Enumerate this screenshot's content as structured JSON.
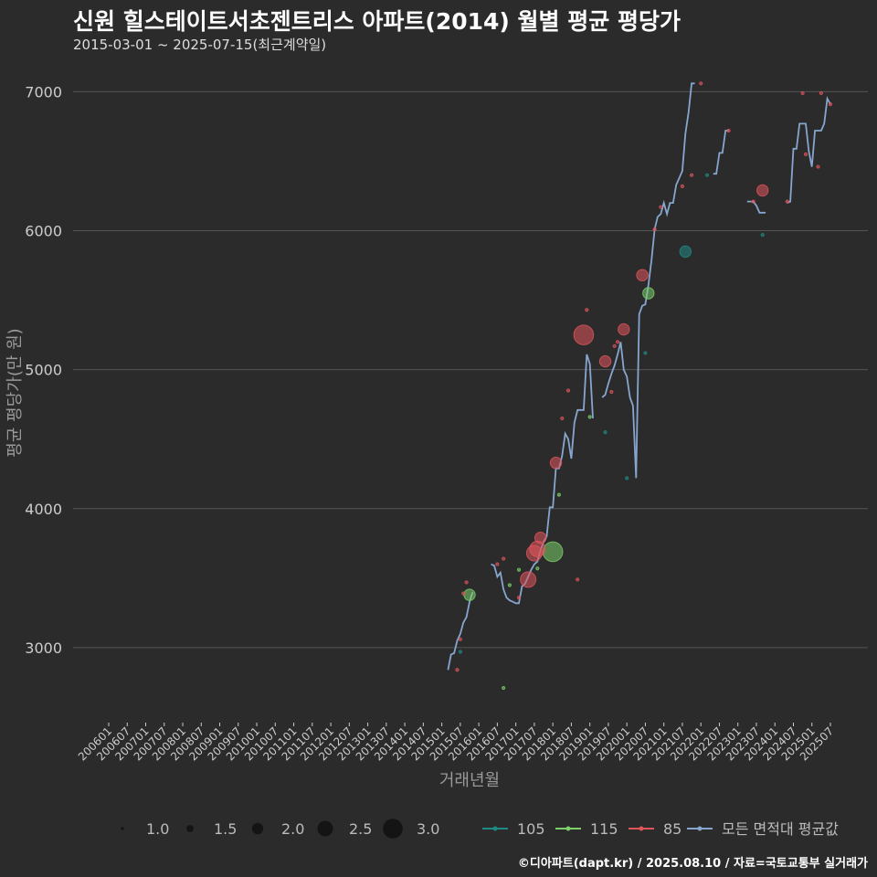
{
  "title": "신원 힐스테이트서초젠트리스 아파트(2014) 월별 평균 평당가",
  "subtitle": "2015-03-01 ~ 2025-07-15(최근계약일)",
  "caption": "©디아파트(dapt.kr) / 2025.08.10 / 자료=국토교통부 실거래가",
  "colors": {
    "background": "#2b2b2b",
    "grid": "#555555",
    "s105": "#1f8a83",
    "s115": "#7ccf6b",
    "s85": "#e0555c",
    "avg": "#86a6cf",
    "size_legend": "#141414"
  },
  "chart_data": {
    "type": "scatter",
    "xlabel": "거래년월",
    "ylabel": "평균 평당가(만 원)",
    "ylim": [
      2500,
      7200
    ],
    "yticks": [
      3000,
      4000,
      5000,
      6000,
      7000
    ],
    "x_range": [
      "2006-01",
      "2025-08"
    ],
    "xticks": [
      "200601",
      "200607",
      "200701",
      "200707",
      "200801",
      "200807",
      "200901",
      "200907",
      "201001",
      "201007",
      "201101",
      "201107",
      "201201",
      "201207",
      "201301",
      "201307",
      "201401",
      "201407",
      "201501",
      "201507",
      "201601",
      "201607",
      "201701",
      "201707",
      "201801",
      "201807",
      "201901",
      "201907",
      "202001",
      "202007",
      "202101",
      "202107",
      "202201",
      "202207",
      "202301",
      "202307",
      "202401",
      "202407",
      "202501",
      "202507"
    ],
    "size_legend": {
      "title": "",
      "values": [
        1.0,
        1.5,
        2.0,
        2.5,
        3.0
      ],
      "labels": [
        "1.0",
        "1.5",
        "2.0",
        "2.5",
        "3.0"
      ]
    },
    "color_legend": [
      {
        "key": "s105",
        "label": "105"
      },
      {
        "key": "s115",
        "label": "115"
      },
      {
        "key": "s85",
        "label": "85"
      },
      {
        "key": "avg",
        "label": "모든 면적대 평균값"
      }
    ],
    "series": [
      {
        "key": "s105",
        "points": [
          {
            "x": "2015-07",
            "y": 2970,
            "n": 1
          },
          {
            "x": "2019-06",
            "y": 4550,
            "n": 1
          },
          {
            "x": "2020-01",
            "y": 4220,
            "n": 1
          },
          {
            "x": "2020-07",
            "y": 5120,
            "n": 1
          },
          {
            "x": "2021-08",
            "y": 5850,
            "n": 2
          },
          {
            "x": "2022-03",
            "y": 6400,
            "n": 1
          },
          {
            "x": "2023-09",
            "y": 5970,
            "n": 1
          }
        ]
      },
      {
        "key": "s115",
        "points": [
          {
            "x": "2015-10",
            "y": 3380,
            "n": 2
          },
          {
            "x": "2016-09",
            "y": 2710,
            "n": 1
          },
          {
            "x": "2016-11",
            "y": 3450,
            "n": 1
          },
          {
            "x": "2017-02",
            "y": 3560,
            "n": 1
          },
          {
            "x": "2017-08",
            "y": 3570,
            "n": 1
          },
          {
            "x": "2018-01",
            "y": 3690,
            "n": 3
          },
          {
            "x": "2018-03",
            "y": 4100,
            "n": 1
          },
          {
            "x": "2019-01",
            "y": 4660,
            "n": 1
          },
          {
            "x": "2020-08",
            "y": 5550,
            "n": 2
          }
        ]
      },
      {
        "key": "s85",
        "points": [
          {
            "x": "2015-06",
            "y": 2840,
            "n": 1
          },
          {
            "x": "2015-07",
            "y": 3060,
            "n": 1
          },
          {
            "x": "2015-08",
            "y": 3390,
            "n": 1
          },
          {
            "x": "2015-09",
            "y": 3470,
            "n": 1
          },
          {
            "x": "2016-07",
            "y": 3600,
            "n": 1
          },
          {
            "x": "2016-09",
            "y": 3640,
            "n": 1
          },
          {
            "x": "2017-02",
            "y": 3360,
            "n": 1
          },
          {
            "x": "2017-05",
            "y": 3490,
            "n": 2.5
          },
          {
            "x": "2017-07",
            "y": 3680,
            "n": 2.5
          },
          {
            "x": "2017-09",
            "y": 3790,
            "n": 2
          },
          {
            "x": "2017-08",
            "y": 3710,
            "n": 2.5
          },
          {
            "x": "2018-02",
            "y": 4330,
            "n": 2
          },
          {
            "x": "2018-04",
            "y": 4650,
            "n": 1
          },
          {
            "x": "2018-06",
            "y": 4850,
            "n": 1
          },
          {
            "x": "2018-09",
            "y": 3490,
            "n": 1
          },
          {
            "x": "2018-11",
            "y": 5250,
            "n": 3
          },
          {
            "x": "2018-12",
            "y": 5430,
            "n": 1
          },
          {
            "x": "2019-06",
            "y": 5060,
            "n": 2
          },
          {
            "x": "2019-08",
            "y": 4840,
            "n": 1
          },
          {
            "x": "2019-09",
            "y": 5170,
            "n": 1
          },
          {
            "x": "2019-10",
            "y": 5200,
            "n": 1
          },
          {
            "x": "2019-12",
            "y": 5290,
            "n": 2
          },
          {
            "x": "2020-06",
            "y": 5680,
            "n": 2
          },
          {
            "x": "2020-10",
            "y": 6010,
            "n": 1
          },
          {
            "x": "2020-12",
            "y": 6170,
            "n": 1
          },
          {
            "x": "2021-07",
            "y": 6320,
            "n": 1
          },
          {
            "x": "2021-10",
            "y": 6400,
            "n": 1
          },
          {
            "x": "2022-01",
            "y": 7060,
            "n": 1
          },
          {
            "x": "2022-10",
            "y": 6720,
            "n": 1
          },
          {
            "x": "2023-06",
            "y": 6210,
            "n": 1
          },
          {
            "x": "2023-09",
            "y": 6290,
            "n": 2
          },
          {
            "x": "2024-05",
            "y": 6210,
            "n": 1
          },
          {
            "x": "2024-10",
            "y": 6990,
            "n": 1
          },
          {
            "x": "2024-11",
            "y": 6550,
            "n": 1
          },
          {
            "x": "2025-03",
            "y": 6460,
            "n": 1
          },
          {
            "x": "2025-04",
            "y": 6990,
            "n": 1
          },
          {
            "x": "2025-07",
            "y": 6910,
            "n": 1
          }
        ]
      }
    ],
    "average_line": {
      "key": "avg",
      "segments": [
        [
          [
            "2015-03",
            2840
          ],
          [
            "2015-04",
            2950
          ],
          [
            "2015-05",
            2960
          ],
          [
            "2015-06",
            3050
          ],
          [
            "2015-07",
            3100
          ],
          [
            "2015-08",
            3180
          ],
          [
            "2015-09",
            3220
          ],
          [
            "2015-10",
            3330
          ],
          [
            "2015-11",
            3400
          ]
        ],
        [
          [
            "2016-05",
            3600
          ],
          [
            "2016-06",
            3590
          ],
          [
            "2016-07",
            3510
          ],
          [
            "2016-08",
            3540
          ],
          [
            "2016-09",
            3420
          ],
          [
            "2016-10",
            3360
          ],
          [
            "2016-11",
            3340
          ],
          [
            "2016-12",
            3330
          ],
          [
            "2017-01",
            3320
          ],
          [
            "2017-02",
            3320
          ],
          [
            "2017-03",
            3440
          ],
          [
            "2017-04",
            3460
          ],
          [
            "2017-05",
            3510
          ],
          [
            "2017-06",
            3560
          ],
          [
            "2017-07",
            3600
          ],
          [
            "2017-08",
            3620
          ],
          [
            "2017-09",
            3700
          ],
          [
            "2017-10",
            3760
          ],
          [
            "2017-11",
            3800
          ],
          [
            "2017-12",
            4010
          ],
          [
            "2018-01",
            4010
          ],
          [
            "2018-02",
            4290
          ],
          [
            "2018-03",
            4290
          ],
          [
            "2018-04",
            4380
          ],
          [
            "2018-05",
            4540
          ],
          [
            "2018-06",
            4500
          ],
          [
            "2018-07",
            4360
          ],
          [
            "2018-08",
            4620
          ],
          [
            "2018-09",
            4710
          ],
          [
            "2018-10",
            4710
          ],
          [
            "2018-11",
            4710
          ],
          [
            "2018-12",
            5110
          ],
          [
            "2019-01",
            5040
          ],
          [
            "2019-02",
            4650
          ]
        ],
        [
          [
            "2019-05",
            4800
          ],
          [
            "2019-06",
            4820
          ],
          [
            "2019-07",
            4900
          ],
          [
            "2019-08",
            4970
          ],
          [
            "2019-09",
            5030
          ],
          [
            "2019-10",
            5110
          ],
          [
            "2019-11",
            5200
          ],
          [
            "2019-12",
            5000
          ],
          [
            "2020-01",
            4950
          ],
          [
            "2020-02",
            4800
          ],
          [
            "2020-03",
            4740
          ],
          [
            "2020-04",
            4220
          ],
          [
            "2020-05",
            5400
          ],
          [
            "2020-06",
            5460
          ],
          [
            "2020-07",
            5470
          ],
          [
            "2020-08",
            5610
          ],
          [
            "2020-09",
            5790
          ],
          [
            "2020-10",
            6010
          ],
          [
            "2020-11",
            6100
          ],
          [
            "2020-12",
            6120
          ],
          [
            "2021-01",
            6200
          ],
          [
            "2021-02",
            6120
          ],
          [
            "2021-03",
            6200
          ],
          [
            "2021-04",
            6200
          ],
          [
            "2021-05",
            6330
          ],
          [
            "2021-06",
            6380
          ],
          [
            "2021-07",
            6430
          ],
          [
            "2021-08",
            6700
          ],
          [
            "2021-09",
            6850
          ],
          [
            "2021-10",
            7060
          ],
          [
            "2021-11",
            7060
          ]
        ],
        [
          [
            "2022-05",
            6410
          ],
          [
            "2022-06",
            6410
          ],
          [
            "2022-07",
            6560
          ],
          [
            "2022-08",
            6560
          ],
          [
            "2022-09",
            6720
          ],
          [
            "2022-10",
            6720
          ]
        ],
        [
          [
            "2023-04",
            6210
          ],
          [
            "2023-05",
            6210
          ],
          [
            "2023-06",
            6210
          ],
          [
            "2023-07",
            6180
          ],
          [
            "2023-08",
            6130
          ],
          [
            "2023-09",
            6130
          ],
          [
            "2023-10",
            6130
          ]
        ],
        [
          [
            "2024-05",
            6200
          ],
          [
            "2024-06",
            6210
          ],
          [
            "2024-07",
            6590
          ],
          [
            "2024-08",
            6590
          ],
          [
            "2024-09",
            6770
          ],
          [
            "2024-10",
            6770
          ],
          [
            "2024-11",
            6770
          ],
          [
            "2024-12",
            6570
          ],
          [
            "2025-01",
            6460
          ],
          [
            "2025-02",
            6720
          ],
          [
            "2025-03",
            6720
          ],
          [
            "2025-04",
            6720
          ],
          [
            "2025-05",
            6770
          ],
          [
            "2025-06",
            6950
          ],
          [
            "2025-07",
            6910
          ]
        ]
      ]
    }
  }
}
